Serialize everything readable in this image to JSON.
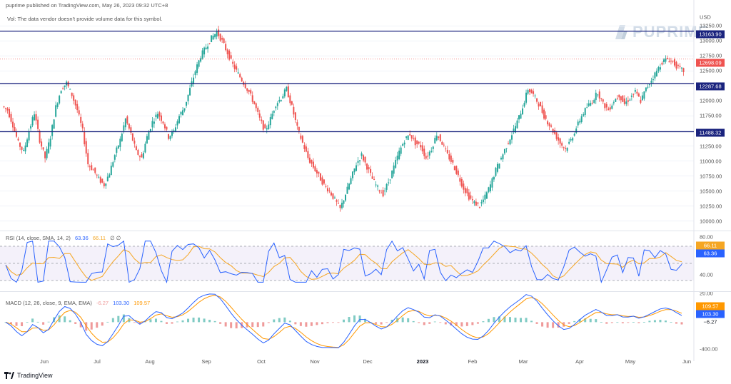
{
  "header": "puprime published on TradingView.com, May 26, 2023 09:32 UTC+8",
  "volume_note": "Vol: The data vendor doesn't provide volume data for this symbol.",
  "watermark": "PUPRIME",
  "footer_brand": "TradingView",
  "currency": "USD",
  "colors": {
    "up": "#26a69a",
    "down": "#ef5350",
    "hline": "#1a237e",
    "last_price": "#ef5350",
    "rsi": "#2962ff",
    "rsi_ma": "#f5a623",
    "macd": "#2962ff",
    "signal": "#ff9800"
  },
  "main_price_axis": [
    "13250.00",
    "13000.00",
    "12750.00",
    "12500.00",
    "12250.00",
    "12000.00",
    "11750.00",
    "11500.00",
    "11250.00",
    "11000.00",
    "10750.00",
    "10500.00",
    "10250.00",
    "10000.00"
  ],
  "price_labels": {
    "level_1": "13163.90",
    "last_price": "12698.09",
    "level_2": "12287.68",
    "level_3": "11488.32"
  },
  "rsi": {
    "title": "RSI (14, close, SMA, 14, 2)",
    "value_rsi": "63.36",
    "value_ma": "66.11",
    "value_extra": "∅ ∅",
    "axis": [
      "80.00",
      "40.00",
      "20.00"
    ],
    "label_ma": "66.11",
    "label_rsi": "63.36"
  },
  "macd": {
    "title": "MACD (12, 26, close, 9, EMA, EMA)",
    "value_hist": "-6.27",
    "value_macd": "103.30",
    "value_signal": "109.57",
    "axis": [
      "-400.00"
    ],
    "label_signal": "109.57",
    "label_macd": "103.30",
    "label_hist": "−6.27"
  },
  "time_axis": [
    {
      "label": "Jun",
      "bold": false
    },
    {
      "label": "Jul",
      "bold": false
    },
    {
      "label": "Aug",
      "bold": false
    },
    {
      "label": "Sep",
      "bold": false
    },
    {
      "label": "Oct",
      "bold": false
    },
    {
      "label": "Nov",
      "bold": false
    },
    {
      "label": "Dec",
      "bold": false
    },
    {
      "label": "2023",
      "bold": true
    },
    {
      "label": "Feb",
      "bold": false
    },
    {
      "label": "Mar",
      "bold": false
    },
    {
      "label": "Apr",
      "bold": false
    },
    {
      "label": "May",
      "bold": false
    },
    {
      "label": "Jun",
      "bold": false
    }
  ],
  "chart_data": {
    "type": "candlestick",
    "y_range": [
      9900,
      13350
    ],
    "horizontal_levels": [
      13163.9,
      12287.68,
      11488.32
    ],
    "last_price": 12698.09,
    "close_series": [
      11850,
      11600,
      11300,
      11150,
      11500,
      11800,
      11350,
      11050,
      11400,
      11900,
      12200,
      12300,
      12100,
      11850,
      11500,
      10950,
      10850,
      10700,
      10600,
      10800,
      11100,
      11350,
      11700,
      11450,
      11150,
      11050,
      11400,
      11650,
      11800,
      11650,
      11400,
      11500,
      11750,
      11900,
      12200,
      12500,
      12750,
      12900,
      13050,
      13150,
      13000,
      12800,
      12600,
      12450,
      12300,
      12150,
      11950,
      11700,
      11500,
      11700,
      11950,
      12050,
      12200,
      11900,
      11550,
      11300,
      11050,
      10900,
      10750,
      10600,
      10500,
      10350,
      10200,
      10450,
      10700,
      10950,
      11100,
      10900,
      10700,
      10550,
      10450,
      10650,
      10900,
      11150,
      11350,
      11450,
      11300,
      11250,
      11050,
      11200,
      11450,
      11300,
      11100,
      10950,
      10750,
      10550,
      10400,
      10300,
      10250,
      10400,
      10600,
      10850,
      11050,
      11250,
      11450,
      11650,
      11900,
      12200,
      12100,
      11950,
      11750,
      11600,
      11450,
      11300,
      11200,
      11350,
      11550,
      11750,
      11900,
      12000,
      12150,
      11950,
      11850,
      12000,
      12100,
      11950,
      12050,
      12150,
      12000,
      12200,
      12350,
      12500,
      12650,
      12700,
      12650,
      12550,
      12500
    ],
    "rsi": {
      "range": [
        20,
        85
      ],
      "upper_band": 70,
      "mid": 50,
      "lower_band": 30
    },
    "macd_range": [
      -450,
      350
    ]
  }
}
